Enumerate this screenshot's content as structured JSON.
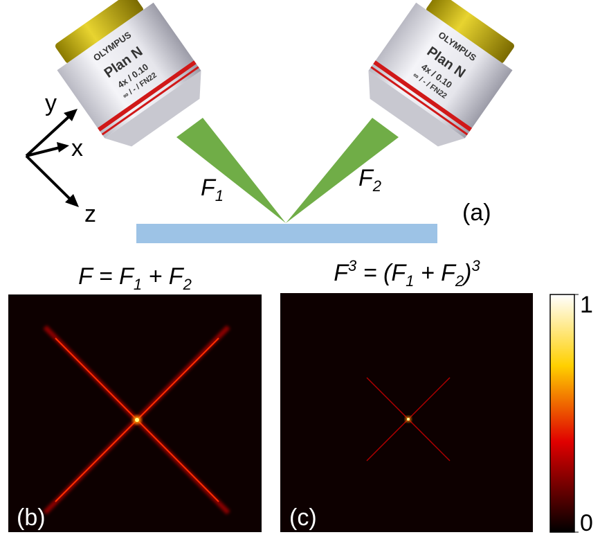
{
  "lens_left": {
    "brand": "OLYMPUS",
    "model": "Plan N",
    "spec": "4x / 0.10",
    "detail": "∞ / - / FN22"
  },
  "lens_right": {
    "brand": "OLYMPUS",
    "model": "Plan N",
    "spec": "4x / 0.10",
    "detail": "∞ / - / FN22"
  },
  "axes": {
    "y": "y",
    "x": "x",
    "z": "z"
  },
  "beam_left": {
    "main": "F",
    "sub": "1"
  },
  "beam_right": {
    "main": "F",
    "sub": "2"
  },
  "label_a": "(a)",
  "title_b": [
    "F = F",
    "1",
    " + F",
    "2"
  ],
  "title_c": [
    "F",
    "3",
    " = (F",
    "1",
    " + F",
    "2",
    ")",
    "3"
  ],
  "label_b": "(b)",
  "label_c": "(c)",
  "colorbar": {
    "range": [
      0,
      1
    ],
    "ticks": [
      0,
      1
    ]
  }
}
